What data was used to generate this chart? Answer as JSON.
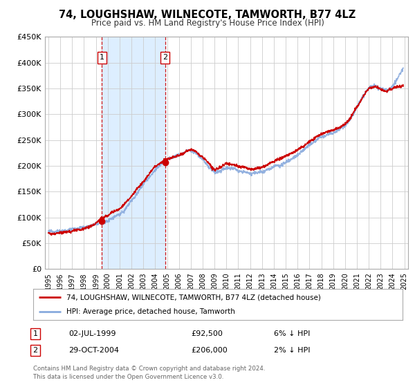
{
  "title": "74, LOUGHSHAW, WILNECOTE, TAMWORTH, B77 4LZ",
  "subtitle": "Price paid vs. HM Land Registry's House Price Index (HPI)",
  "xlim": [
    1994.7,
    2025.3
  ],
  "ylim": [
    0,
    450000
  ],
  "yticks": [
    0,
    50000,
    100000,
    150000,
    200000,
    250000,
    300000,
    350000,
    400000,
    450000
  ],
  "ytick_labels": [
    "£0",
    "£50K",
    "£100K",
    "£150K",
    "£200K",
    "£250K",
    "£300K",
    "£350K",
    "£400K",
    "£450K"
  ],
  "xticks": [
    1995,
    1996,
    1997,
    1998,
    1999,
    2000,
    2001,
    2002,
    2003,
    2004,
    2005,
    2006,
    2007,
    2008,
    2009,
    2010,
    2011,
    2012,
    2013,
    2014,
    2015,
    2016,
    2017,
    2018,
    2019,
    2020,
    2021,
    2022,
    2023,
    2024,
    2025
  ],
  "sale1_x": 1999.5,
  "sale1_y": 92500,
  "sale1_label": "1",
  "sale1_date": "02-JUL-1999",
  "sale1_price": "£92,500",
  "sale1_hpi": "6% ↓ HPI",
  "sale2_x": 2004.83,
  "sale2_y": 206000,
  "sale2_label": "2",
  "sale2_date": "29-OCT-2004",
  "sale2_price": "£206,000",
  "sale2_hpi": "2% ↓ HPI",
  "shade_x1": 1999.5,
  "shade_x2": 2004.83,
  "hpi_line_color": "#88aadd",
  "sale_line_color": "#cc0000",
  "shade_color": "#ddeeff",
  "dot_color": "#cc0000",
  "grid_color": "#cccccc",
  "background_color": "#ffffff",
  "legend_label1": "74, LOUGHSHAW, WILNECOTE, TAMWORTH, B77 4LZ (detached house)",
  "legend_label2": "HPI: Average price, detached house, Tamworth",
  "footer": "Contains HM Land Registry data © Crown copyright and database right 2024.\nThis data is licensed under the Open Government Licence v3.0."
}
